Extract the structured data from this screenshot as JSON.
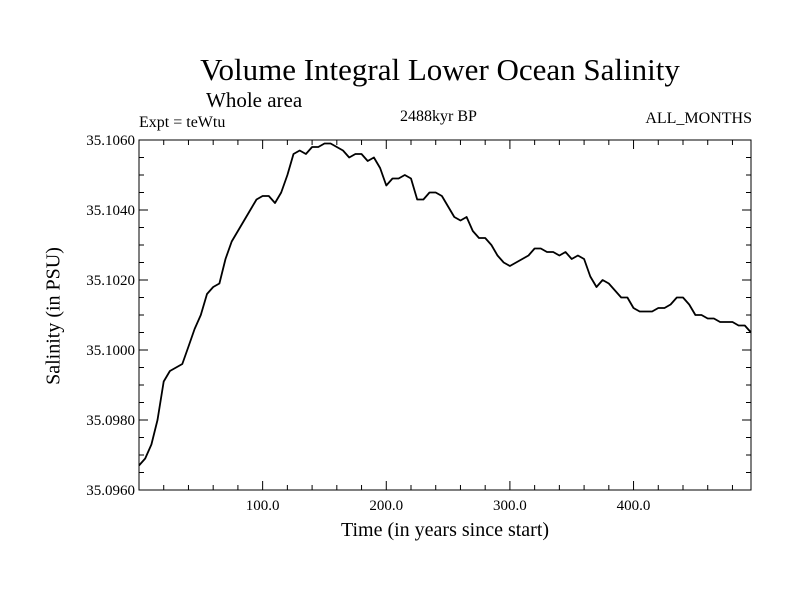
{
  "chart_data": {
    "type": "line",
    "title": "Volume Integral Lower Ocean Salinity",
    "subtitle": "Whole area",
    "experiment": "Expt = teWtu",
    "period": "2488kyr BP",
    "months": "ALL_MONTHS",
    "xlabel": "Time (in years since start)",
    "ylabel": "Salinity (in PSU)",
    "xlim": [
      0,
      495
    ],
    "ylim": [
      35.096,
      35.106
    ],
    "xticks": [
      100,
      200,
      300,
      400
    ],
    "xtick_labels": [
      "100.0",
      "200.0",
      "300.0",
      "400.0"
    ],
    "yticks": [
      35.096,
      35.098,
      35.1,
      35.102,
      35.104,
      35.106
    ],
    "ytick_labels": [
      "35.0960",
      "35.0980",
      "35.1000",
      "35.1020",
      "35.1040",
      "35.1060"
    ],
    "grid": false,
    "series": [
      {
        "name": "Salinity",
        "x": [
          0,
          5,
          10,
          15,
          20,
          25,
          30,
          35,
          40,
          45,
          50,
          55,
          60,
          65,
          70,
          75,
          80,
          85,
          90,
          95,
          100,
          105,
          110,
          115,
          120,
          125,
          130,
          135,
          140,
          145,
          150,
          155,
          160,
          165,
          170,
          175,
          180,
          185,
          190,
          195,
          200,
          205,
          210,
          215,
          220,
          225,
          230,
          235,
          240,
          245,
          250,
          255,
          260,
          265,
          270,
          275,
          280,
          285,
          290,
          295,
          300,
          305,
          310,
          315,
          320,
          325,
          330,
          335,
          340,
          345,
          350,
          355,
          360,
          365,
          370,
          375,
          380,
          385,
          390,
          395,
          400,
          405,
          410,
          415,
          420,
          425,
          430,
          435,
          440,
          445,
          450,
          455,
          460,
          465,
          470,
          475,
          480,
          485,
          490,
          495
        ],
        "values": [
          35.0967,
          35.0969,
          35.0973,
          35.098,
          35.0991,
          35.0994,
          35.0995,
          35.0996,
          35.1001,
          35.1006,
          35.101,
          35.1016,
          35.1018,
          35.1019,
          35.1026,
          35.1031,
          35.1034,
          35.1037,
          35.104,
          35.1043,
          35.1044,
          35.1044,
          35.1042,
          35.1045,
          35.105,
          35.1056,
          35.1057,
          35.1056,
          35.1058,
          35.1058,
          35.1059,
          35.1059,
          35.1058,
          35.1057,
          35.1055,
          35.1056,
          35.1056,
          35.1054,
          35.1055,
          35.1052,
          35.1047,
          35.1049,
          35.1049,
          35.105,
          35.1049,
          35.1043,
          35.1043,
          35.1045,
          35.1045,
          35.1044,
          35.1041,
          35.1038,
          35.1037,
          35.1038,
          35.1034,
          35.1032,
          35.1032,
          35.103,
          35.1027,
          35.1025,
          35.1024,
          35.1025,
          35.1026,
          35.1027,
          35.1029,
          35.1029,
          35.1028,
          35.1028,
          35.1027,
          35.1028,
          35.1026,
          35.1027,
          35.1026,
          35.1021,
          35.1018,
          35.102,
          35.1019,
          35.1017,
          35.1015,
          35.1015,
          35.1012,
          35.1011,
          35.1011,
          35.1011,
          35.1012,
          35.1012,
          35.1013,
          35.1015,
          35.1015,
          35.1013,
          35.101,
          35.101,
          35.1009,
          35.1009,
          35.1008,
          35.1008,
          35.1008,
          35.1007,
          35.1007,
          35.1005
        ]
      }
    ]
  }
}
